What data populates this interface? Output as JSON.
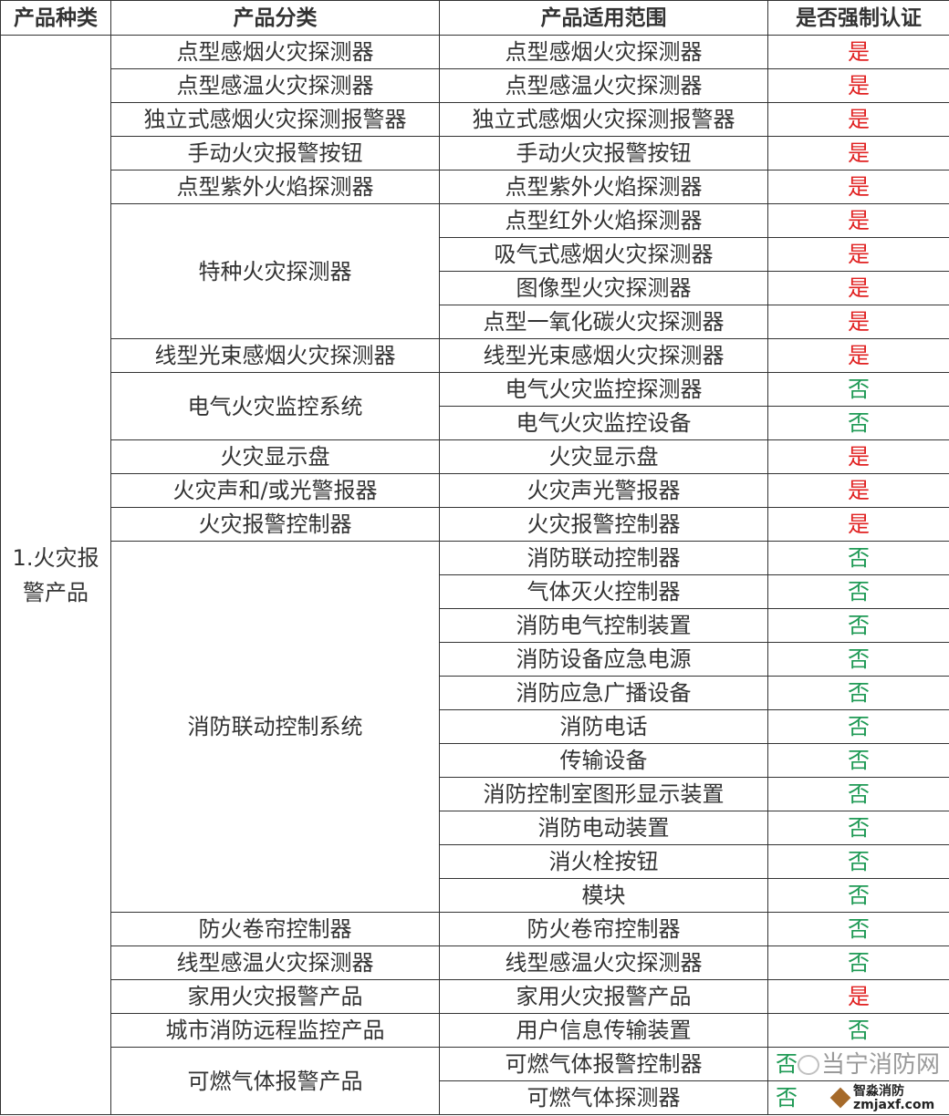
{
  "header": [
    "产品种类",
    "产品分类",
    "产品适用范围",
    "是否强制认证"
  ],
  "product_kind": "1.火灾报警产品",
  "colors": {
    "yes": "#e02020",
    "no": "#1f9a55"
  },
  "groups": [
    {
      "classification": "点型感烟火灾探测器",
      "items": [
        {
          "scope": "点型感烟火灾探测器",
          "cert": "是"
        }
      ]
    },
    {
      "classification": "点型感温火灾探测器",
      "items": [
        {
          "scope": "点型感温火灾探测器",
          "cert": "是"
        }
      ]
    },
    {
      "classification": "独立式感烟火灾探测报警器",
      "items": [
        {
          "scope": "独立式感烟火灾探测报警器",
          "cert": "是"
        }
      ]
    },
    {
      "classification": "手动火灾报警按钮",
      "items": [
        {
          "scope": "手动火灾报警按钮",
          "cert": "是"
        }
      ]
    },
    {
      "classification": "点型紫外火焰探测器",
      "items": [
        {
          "scope": "点型紫外火焰探测器",
          "cert": "是"
        }
      ]
    },
    {
      "classification": "特种火灾探测器",
      "items": [
        {
          "scope": "点型红外火焰探测器",
          "cert": "是"
        },
        {
          "scope": "吸气式感烟火灾探测器",
          "cert": "是"
        },
        {
          "scope": "图像型火灾探测器",
          "cert": "是"
        },
        {
          "scope": "点型一氧化碳火灾探测器",
          "cert": "是"
        }
      ]
    },
    {
      "classification": "线型光束感烟火灾探测器",
      "items": [
        {
          "scope": "线型光束感烟火灾探测器",
          "cert": "是"
        }
      ]
    },
    {
      "classification": "电气火灾监控系统",
      "items": [
        {
          "scope": "电气火灾监控探测器",
          "cert": "否"
        },
        {
          "scope": "电气火灾监控设备",
          "cert": "否"
        }
      ]
    },
    {
      "classification": "火灾显示盘",
      "items": [
        {
          "scope": "火灾显示盘",
          "cert": "是"
        }
      ]
    },
    {
      "classification": "火灾声和/或光警报器",
      "items": [
        {
          "scope": "火灾声光警报器",
          "cert": "是"
        }
      ]
    },
    {
      "classification": "火灾报警控制器",
      "items": [
        {
          "scope": "火灾报警控制器",
          "cert": "是"
        }
      ]
    },
    {
      "classification": "消防联动控制系统",
      "items": [
        {
          "scope": "消防联动控制器",
          "cert": "否"
        },
        {
          "scope": "气体灭火控制器",
          "cert": "否"
        },
        {
          "scope": "消防电气控制装置",
          "cert": "否"
        },
        {
          "scope": "消防设备应急电源",
          "cert": "否"
        },
        {
          "scope": "消防应急广播设备",
          "cert": "否"
        },
        {
          "scope": "消防电话",
          "cert": "否"
        },
        {
          "scope": "传输设备",
          "cert": "否"
        },
        {
          "scope": "消防控制室图形显示装置",
          "cert": "否"
        },
        {
          "scope": "消防电动装置",
          "cert": "否"
        },
        {
          "scope": "消火栓按钮",
          "cert": "否"
        },
        {
          "scope": "模块",
          "cert": "否"
        }
      ]
    },
    {
      "classification": "防火卷帘控制器",
      "items": [
        {
          "scope": "防火卷帘控制器",
          "cert": "否"
        }
      ]
    },
    {
      "classification": "线型感温火灾探测器",
      "items": [
        {
          "scope": "线型感温火灾探测器",
          "cert": "否"
        }
      ]
    },
    {
      "classification": "家用火灾报警产品",
      "items": [
        {
          "scope": "家用火灾报警产品",
          "cert": "是"
        }
      ]
    },
    {
      "classification": "城市消防远程监控产品",
      "items": [
        {
          "scope": "用户信息传输装置",
          "cert": "否"
        }
      ]
    },
    {
      "classification": "可燃气体报警产品",
      "items": [
        {
          "scope": "可燃气体报警控制器",
          "cert": "否"
        },
        {
          "scope": "可燃气体探测器",
          "cert": "否"
        }
      ]
    }
  ],
  "watermark": {
    "text": "当宁消防网",
    "logo_name": "智淼消防",
    "logo_site": "zmjaxf.com"
  }
}
